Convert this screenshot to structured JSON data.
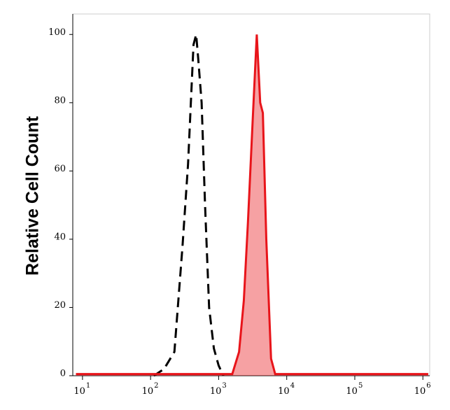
{
  "chart_data": {
    "type": "line",
    "y_label": "Relative Cell Count",
    "xscale": "log",
    "xlim": [
      7.2,
      1260000
    ],
    "ylim": [
      0,
      106
    ],
    "xticks": [
      {
        "value": 10,
        "label": "10",
        "power": "1"
      },
      {
        "value": 100,
        "label": "10",
        "power": "2"
      },
      {
        "value": 1000,
        "label": "10",
        "power": "3"
      },
      {
        "value": 10000,
        "label": "10",
        "power": "4"
      },
      {
        "value": 100000,
        "label": "10",
        "power": "5"
      },
      {
        "value": 1000000,
        "label": "10",
        "power": "6"
      }
    ],
    "yticks": [
      0,
      20,
      40,
      60,
      80,
      100
    ],
    "series": [
      {
        "color": "#000000",
        "dashed": true,
        "fill": false,
        "x": [
          112,
          158,
          224,
          295,
          355,
          427,
          468,
          501,
          562,
          631,
          724,
          851,
          1000,
          1175
        ],
        "values": [
          0,
          2,
          7,
          38,
          62,
          97,
          100,
          93,
          80,
          50,
          20,
          8,
          3,
          0
        ]
      },
      {
        "color": "#e8141a",
        "dashed": false,
        "fill": true,
        "x": [
          8,
          1585,
          1995,
          2344,
          2692,
          3162,
          3631,
          4074,
          4467,
          5012,
          5888,
          6761,
          1200000
        ],
        "values": [
          0.5,
          0.5,
          7,
          22,
          45,
          75,
          100,
          80,
          77,
          40,
          5,
          0.5,
          0.5
        ]
      }
    ]
  }
}
